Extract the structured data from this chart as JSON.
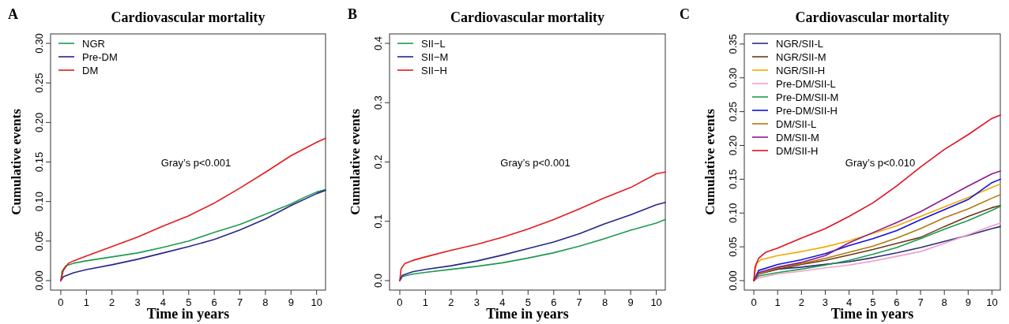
{
  "chart_data": [
    {
      "type": "line",
      "title": "Cardiovascular mortality",
      "xlabel": "Time in years",
      "ylabel": "Cumulative events",
      "annotations": [
        "A",
        "Gray’s p<0.001"
      ],
      "legend": "top left",
      "grid": false,
      "marker": "none",
      "line_style": "solid",
      "xlim": [
        -0.4,
        10.35
      ],
      "xticks": [
        0,
        1,
        2,
        3,
        4,
        5,
        6,
        7,
        8,
        9,
        10
      ],
      "ylim": [
        -0.012,
        0.312
      ],
      "yticks": [
        {
          "value": 0,
          "label": "0.00"
        },
        {
          "value": 0.05,
          "label": "0.05"
        },
        {
          "value": 0.1,
          "label": "0.10"
        },
        {
          "value": 0.15,
          "label": "0.15"
        },
        {
          "value": 0.2,
          "label": "0.20"
        },
        {
          "value": 0.25,
          "label": "0.25"
        },
        {
          "value": 0.3,
          "label": "0.30"
        }
      ],
      "series": [
        {
          "name": "NGR",
          "color": "#1e9a50",
          "x": [
            0,
            0.05,
            0.2,
            0.5,
            1,
            2,
            3,
            4,
            5,
            6,
            7,
            8,
            9,
            9.5,
            10,
            10.35
          ],
          "values": [
            0,
            0.012,
            0.019,
            0.022,
            0.025,
            0.03,
            0.035,
            0.042,
            0.05,
            0.061,
            0.071,
            0.084,
            0.097,
            0.105,
            0.112,
            0.115
          ]
        },
        {
          "name": "Pre-DM",
          "color": "#26268c",
          "x": [
            0,
            0.1,
            0.5,
            1,
            2,
            3,
            4,
            5,
            6,
            7,
            8,
            9,
            10,
            10.35
          ],
          "values": [
            0,
            0.005,
            0.01,
            0.014,
            0.02,
            0.027,
            0.035,
            0.043,
            0.052,
            0.064,
            0.078,
            0.095,
            0.11,
            0.114
          ]
        },
        {
          "name": "DM",
          "color": "#e41a1c",
          "x": [
            0,
            0.1,
            0.3,
            0.5,
            1,
            2,
            3,
            4,
            5,
            6,
            7,
            8,
            9,
            10,
            10.35
          ],
          "values": [
            0,
            0.013,
            0.022,
            0.025,
            0.031,
            0.043,
            0.055,
            0.069,
            0.082,
            0.098,
            0.117,
            0.137,
            0.158,
            0.175,
            0.18
          ]
        }
      ]
    },
    {
      "type": "line",
      "title": "Cardiovascular mortality",
      "xlabel": "Time in years",
      "ylabel": "Cumulative events",
      "annotations": [
        "B",
        "Gray’s p<0.001"
      ],
      "legend": "top left",
      "grid": false,
      "marker": "none",
      "line_style": "solid",
      "xlim": [
        -0.4,
        10.35
      ],
      "xticks": [
        0,
        1,
        2,
        3,
        4,
        5,
        6,
        7,
        8,
        9,
        10
      ],
      "ylim": [
        -0.016,
        0.416
      ],
      "yticks": [
        {
          "value": 0,
          "label": "0.0"
        },
        {
          "value": 0.1,
          "label": "0.1"
        },
        {
          "value": 0.2,
          "label": "0.2"
        },
        {
          "value": 0.3,
          "label": "0.3"
        },
        {
          "value": 0.4,
          "label": "0.4"
        }
      ],
      "series": [
        {
          "name": "SII−L",
          "color": "#1e9a50",
          "x": [
            0,
            0.1,
            0.5,
            1,
            2,
            3,
            4,
            5,
            6,
            7,
            8,
            9,
            10,
            10.35
          ],
          "values": [
            0,
            0.007,
            0.011,
            0.014,
            0.019,
            0.024,
            0.03,
            0.038,
            0.047,
            0.058,
            0.071,
            0.085,
            0.097,
            0.103
          ]
        },
        {
          "name": "SII−M",
          "color": "#26268c",
          "x": [
            0,
            0.1,
            0.5,
            1,
            2,
            3,
            4,
            5,
            6,
            7,
            8,
            9,
            10,
            10.35
          ],
          "values": [
            0,
            0.009,
            0.015,
            0.019,
            0.025,
            0.033,
            0.043,
            0.054,
            0.065,
            0.079,
            0.096,
            0.111,
            0.128,
            0.132
          ]
        },
        {
          "name": "SII−H",
          "color": "#e41a1c",
          "x": [
            0,
            0.05,
            0.2,
            0.5,
            1,
            2,
            3,
            4,
            5,
            6,
            7,
            8,
            9,
            10,
            10.35
          ],
          "values": [
            0,
            0.02,
            0.029,
            0.034,
            0.04,
            0.051,
            0.061,
            0.073,
            0.087,
            0.103,
            0.121,
            0.14,
            0.157,
            0.18,
            0.183
          ]
        }
      ]
    },
    {
      "type": "line",
      "title": "Cardiovascular mortality",
      "xlabel": "Time in years",
      "ylabel": "Cumulative events",
      "annotations": [
        "C",
        "Gray’s p<0.010"
      ],
      "legend": "top left",
      "grid": false,
      "marker": "none",
      "line_style": "solid",
      "xlim": [
        -0.4,
        10.35
      ],
      "xticks": [
        0,
        1,
        2,
        3,
        4,
        5,
        6,
        7,
        8,
        9,
        10
      ],
      "ylim": [
        -0.014,
        0.365
      ],
      "yticks": [
        {
          "value": 0,
          "label": "0.00"
        },
        {
          "value": 0.05,
          "label": "0.05"
        },
        {
          "value": 0.1,
          "label": "0.10"
        },
        {
          "value": 0.15,
          "label": "0.15"
        },
        {
          "value": 0.2,
          "label": "0.20"
        },
        {
          "value": 0.25,
          "label": "0.25"
        },
        {
          "value": 0.3,
          "label": "0.30"
        },
        {
          "value": 0.35,
          "label": "0.35"
        }
      ],
      "series": [
        {
          "name": "NGR/SII-L",
          "color": "#2b2b7a",
          "x": [
            0,
            0.2,
            1,
            2,
            3,
            4,
            5,
            6,
            7,
            8,
            9,
            10,
            10.35
          ],
          "values": [
            0,
            0.01,
            0.017,
            0.02,
            0.024,
            0.028,
            0.034,
            0.041,
            0.049,
            0.058,
            0.067,
            0.077,
            0.08
          ]
        },
        {
          "name": "NGR/SII-M",
          "color": "#6b3a1a",
          "x": [
            0,
            0.2,
            1,
            2,
            3,
            4,
            5,
            6,
            7,
            8,
            9,
            10,
            10.35
          ],
          "values": [
            0,
            0.01,
            0.017,
            0.024,
            0.03,
            0.038,
            0.046,
            0.055,
            0.064,
            0.08,
            0.095,
            0.108,
            0.111
          ]
        },
        {
          "name": "NGR/SII-H",
          "color": "#f5a800",
          "x": [
            0,
            0.1,
            0.3,
            1,
            2,
            3,
            4,
            5,
            6,
            7,
            8,
            9,
            10,
            10.35
          ],
          "values": [
            0,
            0.025,
            0.031,
            0.037,
            0.043,
            0.05,
            0.059,
            0.07,
            0.081,
            0.095,
            0.109,
            0.123,
            0.138,
            0.143
          ]
        },
        {
          "name": "Pre-DM/SII-L",
          "color": "#f0a0c8",
          "x": [
            0,
            0.2,
            1,
            2,
            3,
            4,
            5,
            6,
            7,
            8,
            9,
            10,
            10.35
          ],
          "values": [
            0,
            0.004,
            0.01,
            0.014,
            0.019,
            0.023,
            0.029,
            0.036,
            0.043,
            0.055,
            0.068,
            0.081,
            0.085
          ]
        },
        {
          "name": "Pre-DM/SII-M",
          "color": "#1e9a50",
          "x": [
            0,
            0.2,
            1,
            2,
            3,
            4,
            5,
            6,
            7,
            8,
            9,
            10,
            10.35
          ],
          "values": [
            0,
            0.007,
            0.012,
            0.017,
            0.023,
            0.03,
            0.039,
            0.049,
            0.062,
            0.076,
            0.089,
            0.104,
            0.11
          ]
        },
        {
          "name": "Pre-DM/SII-H",
          "color": "#1010e0",
          "x": [
            0,
            0.2,
            1,
            2,
            3,
            4,
            5,
            6,
            7,
            8,
            9,
            10,
            10.35
          ],
          "values": [
            0,
            0.015,
            0.024,
            0.031,
            0.04,
            0.052,
            0.062,
            0.074,
            0.09,
            0.105,
            0.12,
            0.145,
            0.15
          ]
        },
        {
          "name": "DM/SII-L",
          "color": "#b07a10",
          "x": [
            0,
            0.2,
            1,
            2,
            3,
            4,
            5,
            6,
            7,
            8,
            9,
            10,
            10.35
          ],
          "values": [
            0,
            0.01,
            0.019,
            0.025,
            0.033,
            0.042,
            0.051,
            0.063,
            0.077,
            0.093,
            0.106,
            0.122,
            0.127
          ]
        },
        {
          "name": "DM/SII-M",
          "color": "#8b1a8b",
          "x": [
            0,
            0.2,
            1,
            2,
            3,
            4,
            5,
            6,
            7,
            8,
            9,
            10,
            10.35
          ],
          "values": [
            0,
            0.012,
            0.02,
            0.027,
            0.037,
            0.056,
            0.071,
            0.086,
            0.102,
            0.121,
            0.14,
            0.158,
            0.162
          ]
        },
        {
          "name": "DM/SII-H",
          "color": "#e01020",
          "x": [
            0,
            0.05,
            0.2,
            0.5,
            1,
            2,
            3,
            4,
            5,
            6,
            7,
            8,
            9,
            10,
            10.35
          ],
          "values": [
            0,
            0.02,
            0.033,
            0.042,
            0.048,
            0.063,
            0.077,
            0.095,
            0.115,
            0.14,
            0.168,
            0.194,
            0.216,
            0.24,
            0.245
          ]
        }
      ]
    }
  ]
}
